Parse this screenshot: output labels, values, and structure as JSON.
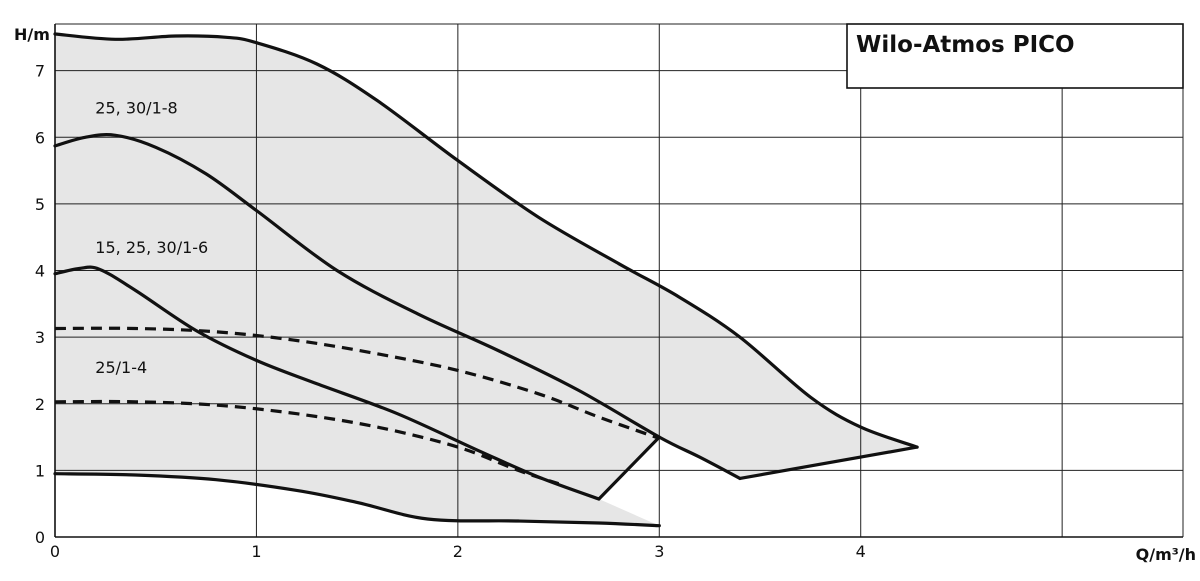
{
  "chart_data": {
    "type": "line",
    "title": "Wilo-Atmos PICO",
    "xlabel": "Q/m³/h",
    "ylabel": "H/m",
    "xlim": [
      0,
      5.6
    ],
    "ylim": [
      0,
      7.7
    ],
    "grid": true,
    "x_ticks": [
      0,
      1,
      2,
      3,
      4
    ],
    "y_ticks": [
      0,
      1,
      2,
      3,
      4,
      5,
      6,
      7
    ],
    "curve_labels": [
      "25, 30/1-8",
      "15, 25, 30/1-6",
      "25/1-4"
    ],
    "series": [
      {
        "name": "25, 30/1-8",
        "style": "solid",
        "points": [
          [
            0,
            7.55
          ],
          [
            0.3,
            7.47
          ],
          [
            0.6,
            7.52
          ],
          [
            0.85,
            7.5
          ],
          [
            1.0,
            7.42
          ],
          [
            1.3,
            7.1
          ],
          [
            1.6,
            6.55
          ],
          [
            2.0,
            5.65
          ],
          [
            2.4,
            4.8
          ],
          [
            2.8,
            4.1
          ],
          [
            3.1,
            3.6
          ],
          [
            3.4,
            3.0
          ],
          [
            3.75,
            2.1
          ],
          [
            4.0,
            1.65
          ],
          [
            4.28,
            1.35
          ]
        ]
      },
      {
        "name": "15, 25, 30/1-6",
        "style": "solid",
        "points": [
          [
            0,
            5.87
          ],
          [
            0.15,
            6.0
          ],
          [
            0.3,
            6.03
          ],
          [
            0.5,
            5.85
          ],
          [
            0.75,
            5.45
          ],
          [
            1.0,
            4.9
          ],
          [
            1.4,
            4.0
          ],
          [
            1.8,
            3.35
          ],
          [
            2.2,
            2.8
          ],
          [
            2.6,
            2.2
          ],
          [
            3.0,
            1.5
          ],
          [
            3.2,
            1.2
          ],
          [
            3.4,
            0.88
          ]
        ]
      },
      {
        "name": "25/1-4",
        "style": "solid",
        "points": [
          [
            0,
            3.95
          ],
          [
            0.12,
            4.03
          ],
          [
            0.22,
            4.02
          ],
          [
            0.4,
            3.7
          ],
          [
            0.7,
            3.1
          ],
          [
            1.0,
            2.65
          ],
          [
            1.3,
            2.3
          ],
          [
            1.7,
            1.85
          ],
          [
            2.1,
            1.3
          ],
          [
            2.4,
            0.9
          ],
          [
            2.7,
            0.57
          ]
        ]
      },
      {
        "name": "min",
        "style": "solid",
        "points": [
          [
            0,
            0.95
          ],
          [
            0.4,
            0.93
          ],
          [
            0.8,
            0.86
          ],
          [
            1.2,
            0.7
          ],
          [
            1.5,
            0.52
          ],
          [
            1.85,
            0.27
          ],
          [
            2.3,
            0.24
          ],
          [
            2.7,
            0.21
          ],
          [
            3.0,
            0.17
          ]
        ]
      },
      {
        "name": "dashed-upper",
        "style": "dashed",
        "points": [
          [
            0,
            3.13
          ],
          [
            0.4,
            3.13
          ],
          [
            0.8,
            3.08
          ],
          [
            1.2,
            2.95
          ],
          [
            1.6,
            2.75
          ],
          [
            2.0,
            2.5
          ],
          [
            2.4,
            2.15
          ],
          [
            2.7,
            1.8
          ],
          [
            3.0,
            1.48
          ]
        ]
      },
      {
        "name": "dashed-lower",
        "style": "dashed",
        "points": [
          [
            0,
            2.03
          ],
          [
            0.4,
            2.03
          ],
          [
            0.8,
            1.98
          ],
          [
            1.2,
            1.85
          ],
          [
            1.6,
            1.65
          ],
          [
            2.0,
            1.35
          ],
          [
            2.3,
            1.0
          ],
          [
            2.5,
            0.8
          ]
        ]
      },
      {
        "name": "connector-1",
        "style": "solid",
        "points": [
          [
            2.7,
            0.57
          ],
          [
            3.0,
            1.5
          ]
        ]
      },
      {
        "name": "connector-2",
        "style": "solid",
        "points": [
          [
            3.4,
            0.88
          ],
          [
            4.28,
            1.35
          ]
        ]
      }
    ],
    "region": [
      [
        0,
        7.55
      ],
      [
        0.3,
        7.47
      ],
      [
        0.6,
        7.52
      ],
      [
        0.85,
        7.5
      ],
      [
        1.0,
        7.42
      ],
      [
        1.3,
        7.1
      ],
      [
        1.6,
        6.55
      ],
      [
        2.0,
        5.65
      ],
      [
        2.4,
        4.8
      ],
      [
        2.8,
        4.1
      ],
      [
        3.1,
        3.6
      ],
      [
        3.4,
        3.0
      ],
      [
        3.75,
        2.1
      ],
      [
        4.0,
        1.65
      ],
      [
        4.28,
        1.35
      ],
      [
        3.4,
        0.88
      ],
      [
        3.0,
        1.5
      ],
      [
        2.7,
        0.57
      ],
      [
        3.0,
        0.17
      ],
      [
        2.7,
        0.21
      ],
      [
        2.3,
        0.24
      ],
      [
        1.85,
        0.27
      ],
      [
        1.5,
        0.52
      ],
      [
        1.2,
        0.7
      ],
      [
        0.8,
        0.86
      ],
      [
        0.4,
        0.93
      ],
      [
        0,
        0.95
      ]
    ],
    "colors": {
      "fill": "#e6e6e6",
      "line": "#111111",
      "grid": "#222222"
    }
  }
}
